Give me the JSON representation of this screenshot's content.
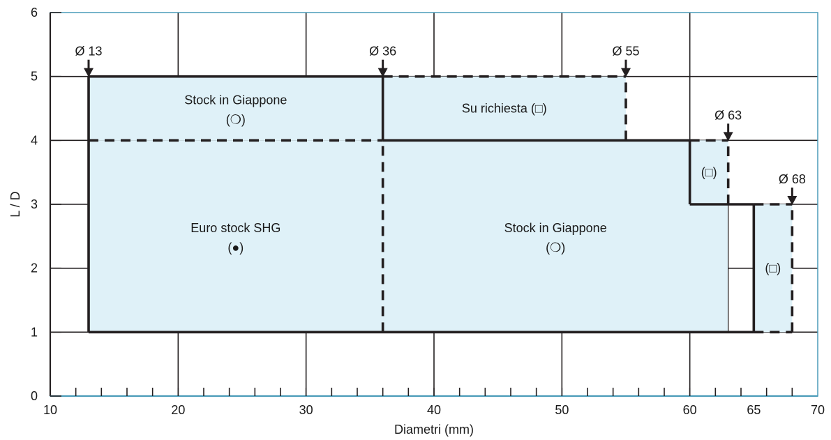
{
  "chart_data": {
    "type": "area",
    "xlabel": "Diametri (mm)",
    "ylabel": "L / D",
    "xlim": [
      10,
      70
    ],
    "ylim": [
      0,
      6
    ],
    "x_ticks": [
      10,
      20,
      30,
      40,
      50,
      60,
      65,
      70
    ],
    "x_tick_labels": [
      "10",
      "20",
      "30",
      "40",
      "50",
      "60",
      "65",
      "70"
    ],
    "y_ticks": [
      0,
      1,
      2,
      3,
      4,
      5,
      6
    ],
    "y_tick_labels": [
      "0",
      "1",
      "2",
      "3",
      "4",
      "5",
      "6"
    ],
    "grid": true,
    "regions": [
      {
        "label": "Stock in Giappone",
        "symbol": "(❍)",
        "x": [
          13,
          36
        ],
        "y": [
          4,
          5
        ]
      },
      {
        "label": "Su richiesta",
        "symbol": "(□)",
        "x": [
          36,
          55
        ],
        "y": [
          4,
          5
        ]
      },
      {
        "label": "Euro stock SHG",
        "symbol": "(●)",
        "x": [
          13,
          36
        ],
        "y": [
          1,
          4
        ]
      },
      {
        "label": "Stock in Giappone",
        "symbol": "(❍)",
        "x": [
          36,
          63
        ],
        "y": [
          1,
          4
        ]
      },
      {
        "label": "",
        "symbol": "(□)",
        "x": [
          60,
          63
        ],
        "y": [
          3,
          4
        ]
      },
      {
        "label": "",
        "symbol": "(□)",
        "x": [
          65,
          68
        ],
        "y": [
          1,
          3
        ]
      }
    ],
    "diameter_markers": [
      {
        "label": "Ø 13",
        "x": 13,
        "y": 5
      },
      {
        "label": "Ø 36",
        "x": 36,
        "y": 5
      },
      {
        "label": "Ø 55",
        "x": 55,
        "y": 5
      },
      {
        "label": "Ø 63",
        "x": 63,
        "y": 4
      },
      {
        "label": "Ø 68",
        "x": 68,
        "y": 3
      }
    ],
    "colors": {
      "fill": "#dff1f8",
      "frame": "#4a9bb8",
      "line": "#231f20",
      "grid": "#231f20"
    }
  }
}
